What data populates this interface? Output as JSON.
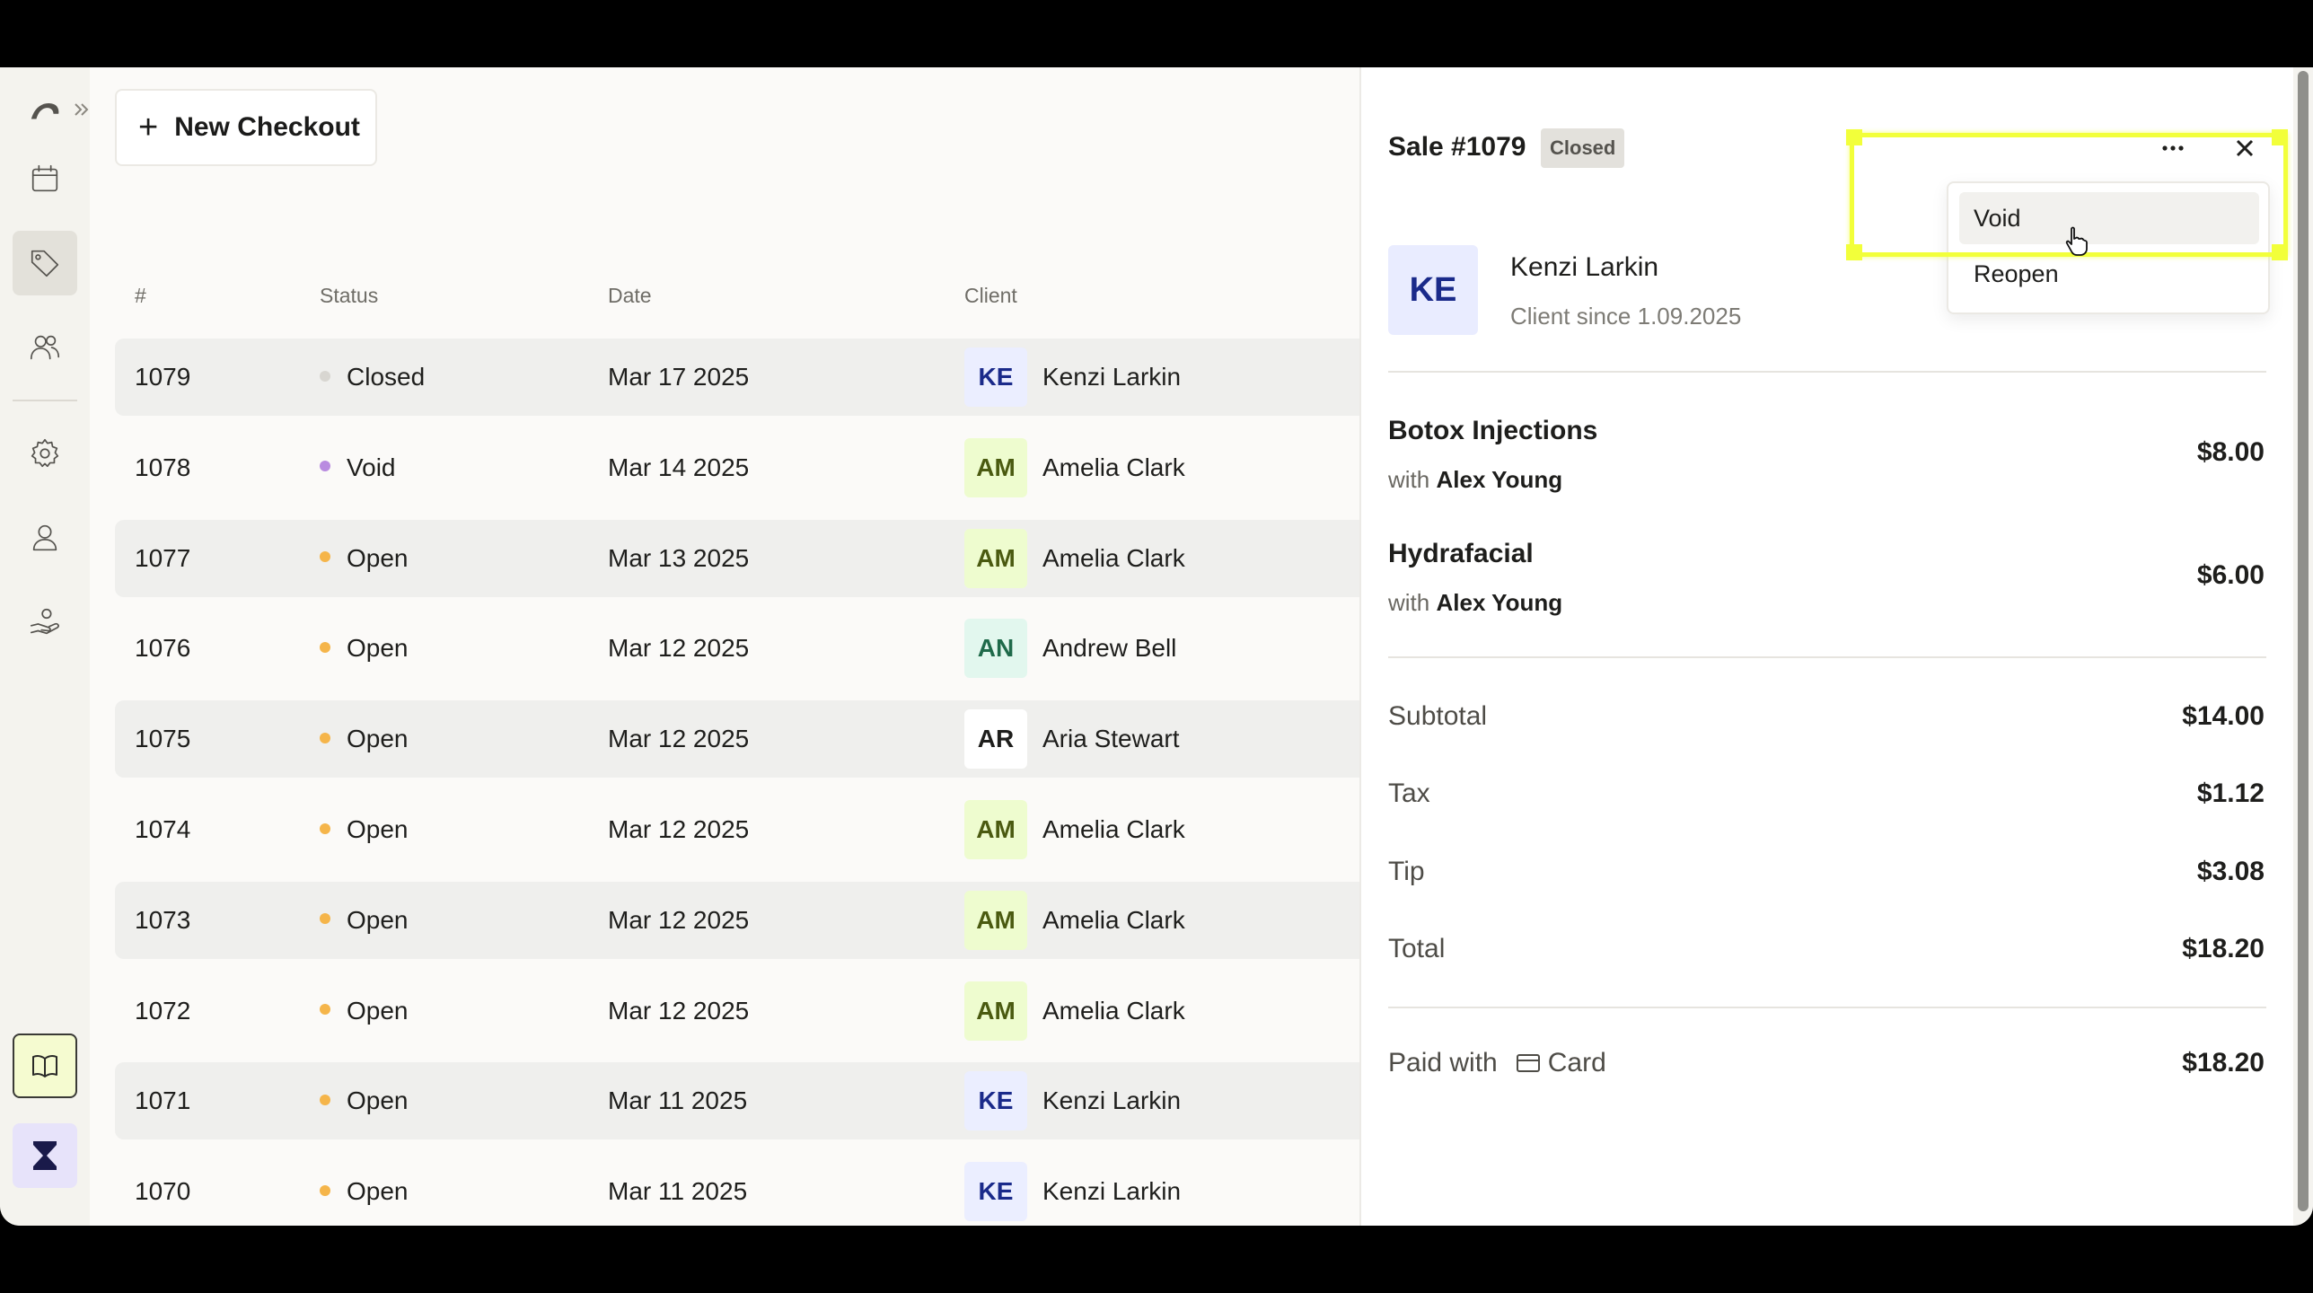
{
  "toolbar": {
    "new_checkout_label": "New Checkout"
  },
  "table": {
    "headers": {
      "number": "#",
      "status": "Status",
      "date": "Date",
      "client": "Client"
    },
    "rows": [
      {
        "number": "1079",
        "status": "Closed",
        "status_color": "#d8d6d1",
        "date": "Mar 17 2025",
        "initials": "KE",
        "client": "Kenzi Larkin",
        "avatar_bg": "#ebeeff",
        "avatar_fg": "#1a2a8a"
      },
      {
        "number": "1078",
        "status": "Void",
        "status_color": "#b98be0",
        "date": "Mar 14 2025",
        "initials": "AM",
        "client": "Amelia Clark",
        "avatar_bg": "#eefccf",
        "avatar_fg": "#4a5a10"
      },
      {
        "number": "1077",
        "status": "Open",
        "status_color": "#f5b54a",
        "date": "Mar 13 2025",
        "initials": "AM",
        "client": "Amelia Clark",
        "avatar_bg": "#eefccf",
        "avatar_fg": "#4a5a10"
      },
      {
        "number": "1076",
        "status": "Open",
        "status_color": "#f5b54a",
        "date": "Mar 12 2025",
        "initials": "AN",
        "client": "Andrew Bell",
        "avatar_bg": "#e2f7ee",
        "avatar_fg": "#1f6a4a"
      },
      {
        "number": "1075",
        "status": "Open",
        "status_color": "#f5b54a",
        "date": "Mar 12 2025",
        "initials": "AR",
        "client": "Aria Stewart",
        "avatar_bg": "#ffffff",
        "avatar_fg": "#1e1e1c"
      },
      {
        "number": "1074",
        "status": "Open",
        "status_color": "#f5b54a",
        "date": "Mar 12 2025",
        "initials": "AM",
        "client": "Amelia Clark",
        "avatar_bg": "#eefccf",
        "avatar_fg": "#4a5a10"
      },
      {
        "number": "1073",
        "status": "Open",
        "status_color": "#f5b54a",
        "date": "Mar 12 2025",
        "initials": "AM",
        "client": "Amelia Clark",
        "avatar_bg": "#eefccf",
        "avatar_fg": "#4a5a10"
      },
      {
        "number": "1072",
        "status": "Open",
        "status_color": "#f5b54a",
        "date": "Mar 12 2025",
        "initials": "AM",
        "client": "Amelia Clark",
        "avatar_bg": "#eefccf",
        "avatar_fg": "#4a5a10"
      },
      {
        "number": "1071",
        "status": "Open",
        "status_color": "#f5b54a",
        "date": "Mar 11 2025",
        "initials": "KE",
        "client": "Kenzi Larkin",
        "avatar_bg": "#ebeeff",
        "avatar_fg": "#1a2a8a"
      },
      {
        "number": "1070",
        "status": "Open",
        "status_color": "#f5b54a",
        "date": "Mar 11 2025",
        "initials": "KE",
        "client": "Kenzi Larkin",
        "avatar_bg": "#ebeeff",
        "avatar_fg": "#1a2a8a"
      }
    ]
  },
  "panel": {
    "title": "Sale #1079",
    "badge": "Closed",
    "client": {
      "initials": "KE",
      "name": "Kenzi Larkin",
      "since": "Client since 1.09.2025"
    },
    "services": [
      {
        "name": "Botox Injections",
        "with_prefix": "with",
        "staff": "Alex Young",
        "price": "$8.00"
      },
      {
        "name": "Hydrafacial",
        "with_prefix": "with",
        "staff": "Alex Young",
        "price": "$6.00"
      }
    ],
    "summary": [
      {
        "label": "Subtotal",
        "value": "$14.00"
      },
      {
        "label": "Tax",
        "value": "$1.12"
      },
      {
        "label": "Tip",
        "value": "$3.08"
      },
      {
        "label": "Total",
        "value": "$18.20"
      }
    ],
    "paid": {
      "label": "Paid with",
      "method": "Card",
      "value": "$18.20"
    }
  },
  "menu": {
    "items": [
      "Void",
      "Reopen"
    ]
  },
  "colors": {
    "highlight": "#f2ff3a",
    "accent_avatar": "#1a2a8a"
  },
  "icons": [
    "logo-icon",
    "calendar-icon",
    "tag-icon",
    "users-icon",
    "gear-icon",
    "person-icon",
    "hand-heart-icon",
    "book-icon",
    "hourglass-icon",
    "more-icon",
    "close-icon",
    "card-icon",
    "pointer-cursor-icon"
  ]
}
